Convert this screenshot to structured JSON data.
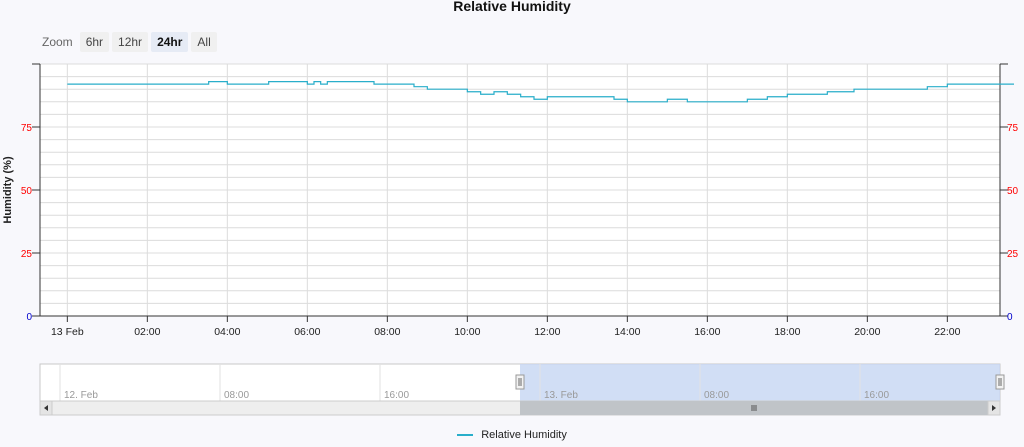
{
  "chart_data": {
    "type": "line",
    "title": "Relative Humidity",
    "ylabel": "Humidity (%)",
    "xlabel": "",
    "ylim": [
      0,
      100
    ],
    "x_range": [
      "13 Feb 00:00",
      "13 Feb 23:40"
    ],
    "y_ticks": [
      "0",
      "25",
      "50",
      "75"
    ],
    "x_ticks": [
      "13 Feb",
      "02:00",
      "04:00",
      "06:00",
      "08:00",
      "10:00",
      "12:00",
      "14:00",
      "16:00",
      "18:00",
      "20:00",
      "22:00"
    ],
    "grid": true,
    "legend": "bottom-center",
    "colors": {
      "series": "#29aeca",
      "tick_red": "#ff0000",
      "tick_blue": "#0000cc",
      "navigator_fill": "#c6d6f2"
    },
    "series": [
      {
        "name": "Relative Humidity",
        "x": [
          "00:00",
          "03:30",
          "03:32",
          "04:00",
          "05:00",
          "05:02",
          "06:00",
          "06:10",
          "06:20",
          "06:30",
          "06:50",
          "07:20",
          "07:40",
          "08:00",
          "08:40",
          "09:00",
          "10:00",
          "10:20",
          "10:40",
          "11:00",
          "11:20",
          "11:40",
          "12:00",
          "12:30",
          "13:00",
          "13:40",
          "14:00",
          "14:30",
          "15:00",
          "15:30",
          "16:00",
          "16:30",
          "17:00",
          "17:30",
          "18:00",
          "18:40",
          "19:00",
          "19:40",
          "20:00",
          "21:00",
          "21:30",
          "22:00",
          "23:40"
        ],
        "values": [
          92,
          92,
          93,
          92,
          92,
          93,
          92,
          93,
          92,
          93,
          93,
          93,
          92,
          92,
          91,
          90,
          89,
          88,
          89,
          88,
          87,
          86,
          87,
          87,
          87,
          86,
          85,
          85,
          86,
          85,
          85,
          85,
          86,
          87,
          88,
          88,
          89,
          90,
          90,
          90,
          91,
          92,
          92
        ]
      }
    ]
  },
  "zoom": {
    "label": "Zoom",
    "buttons": [
      "6hr",
      "12hr",
      "24hr",
      "All"
    ],
    "active": "24hr"
  },
  "navigator": {
    "labels": [
      "12. Feb",
      "08:00",
      "16:00",
      "13. Feb",
      "08:00",
      "16:00"
    ],
    "selected_fraction": [
      0.5,
      1.0
    ]
  },
  "legend": {
    "label": "Relative Humidity"
  }
}
